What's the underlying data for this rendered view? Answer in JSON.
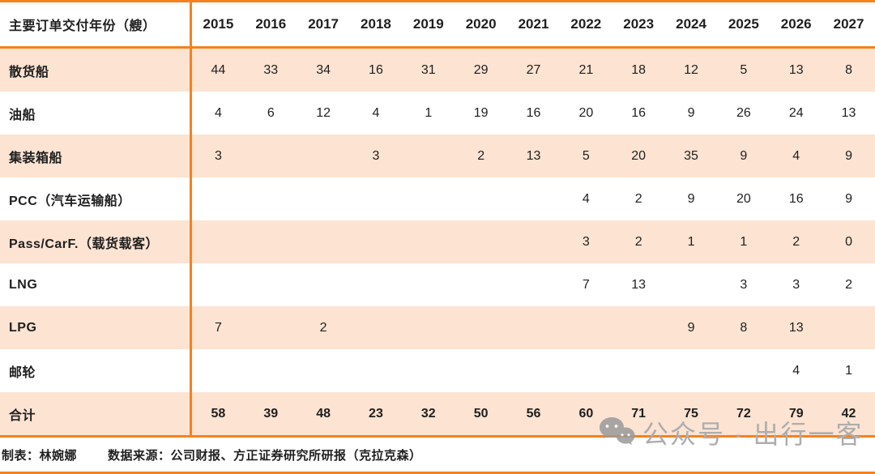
{
  "table": {
    "header_label": "主要订单交付年份（艘）",
    "years": [
      "2015",
      "2016",
      "2017",
      "2018",
      "2019",
      "2020",
      "2021",
      "2022",
      "2023",
      "2024",
      "2025",
      "2026",
      "2027"
    ],
    "rows": [
      {
        "label": "散货船",
        "values": [
          "44",
          "33",
          "34",
          "16",
          "31",
          "29",
          "27",
          "21",
          "18",
          "12",
          "5",
          "13",
          "8"
        ],
        "total": false
      },
      {
        "label": "油船",
        "values": [
          "4",
          "6",
          "12",
          "4",
          "1",
          "19",
          "16",
          "20",
          "16",
          "9",
          "26",
          "24",
          "13"
        ],
        "total": false
      },
      {
        "label": "集装箱船",
        "values": [
          "3",
          "",
          "",
          "3",
          "",
          "2",
          "13",
          "5",
          "20",
          "35",
          "9",
          "4",
          "9"
        ],
        "total": false
      },
      {
        "label": "PCC（汽车运输船）",
        "values": [
          "",
          "",
          "",
          "",
          "",
          "",
          "",
          "4",
          "2",
          "9",
          "20",
          "16",
          "9"
        ],
        "total": false
      },
      {
        "label": "Pass/CarF.（载货载客）",
        "values": [
          "",
          "",
          "",
          "",
          "",
          "",
          "",
          "3",
          "2",
          "1",
          "1",
          "2",
          "0"
        ],
        "total": false
      },
      {
        "label": "LNG",
        "values": [
          "",
          "",
          "",
          "",
          "",
          "",
          "",
          "7",
          "13",
          "",
          "3",
          "3",
          "2"
        ],
        "total": false
      },
      {
        "label": "LPG",
        "values": [
          "7",
          "",
          "2",
          "",
          "",
          "",
          "",
          "",
          "",
          "9",
          "8",
          "13",
          ""
        ],
        "total": false
      },
      {
        "label": "邮轮",
        "values": [
          "",
          "",
          "",
          "",
          "",
          "",
          "",
          "",
          "",
          "",
          "",
          "4",
          "1"
        ],
        "total": false
      },
      {
        "label": "合计",
        "values": [
          "58",
          "39",
          "48",
          "23",
          "32",
          "50",
          "56",
          "60",
          "71",
          "75",
          "72",
          "79",
          "42"
        ],
        "total": true
      }
    ]
  },
  "footer": {
    "credit": "制表：林婉娜",
    "source": "数据来源：公司财报、方正证券研究所研报（克拉克森）"
  },
  "watermark": {
    "icon": "wechat-bubbles-icon",
    "text": "公众号 · 出行一客"
  },
  "colors": {
    "accent": "#F5821E",
    "row_stripe": "#FCE3D2",
    "text": "#1F1F1F",
    "watermark_gray": "#ADADAD"
  },
  "chart_data": {
    "type": "table",
    "title": "主要订单交付年份（艘）",
    "columns": [
      2015,
      2016,
      2017,
      2018,
      2019,
      2020,
      2021,
      2022,
      2023,
      2024,
      2025,
      2026,
      2027
    ],
    "rows": [
      {
        "name": "散货船",
        "values": [
          44,
          33,
          34,
          16,
          31,
          29,
          27,
          21,
          18,
          12,
          5,
          13,
          8
        ]
      },
      {
        "name": "油船",
        "values": [
          4,
          6,
          12,
          4,
          1,
          19,
          16,
          20,
          16,
          9,
          26,
          24,
          13
        ]
      },
      {
        "name": "集装箱船",
        "values": [
          3,
          null,
          null,
          3,
          null,
          2,
          13,
          5,
          20,
          35,
          9,
          4,
          9
        ]
      },
      {
        "name": "PCC（汽车运输船）",
        "values": [
          null,
          null,
          null,
          null,
          null,
          null,
          null,
          4,
          2,
          9,
          20,
          16,
          9
        ]
      },
      {
        "name": "Pass/CarF.（载货载客）",
        "values": [
          null,
          null,
          null,
          null,
          null,
          null,
          null,
          3,
          2,
          1,
          1,
          2,
          0
        ]
      },
      {
        "name": "LNG",
        "values": [
          null,
          null,
          null,
          null,
          null,
          null,
          null,
          7,
          13,
          null,
          3,
          3,
          2
        ]
      },
      {
        "name": "LPG",
        "values": [
          7,
          null,
          2,
          null,
          null,
          null,
          null,
          null,
          null,
          9,
          8,
          13,
          null
        ]
      },
      {
        "name": "邮轮",
        "values": [
          null,
          null,
          null,
          null,
          null,
          null,
          null,
          null,
          null,
          null,
          null,
          4,
          1
        ]
      },
      {
        "name": "合计",
        "values": [
          58,
          39,
          48,
          23,
          32,
          50,
          56,
          60,
          71,
          75,
          72,
          79,
          42
        ]
      }
    ],
    "credit": "制表：林婉娜",
    "source": "数据来源：公司财报、方正证券研究所研报（克拉克森）"
  }
}
